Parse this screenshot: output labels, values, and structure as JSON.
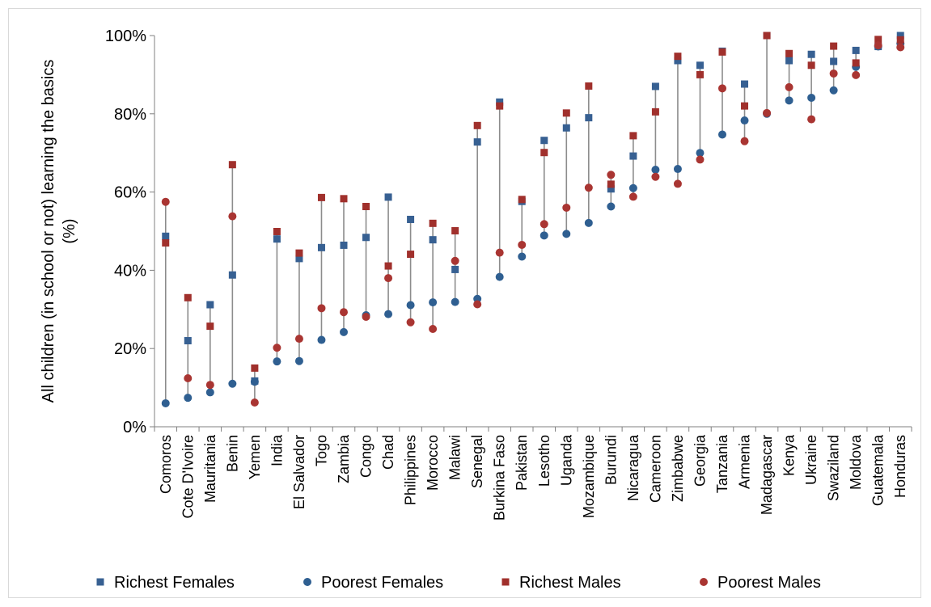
{
  "chart_data": {
    "type": "scatter",
    "title": "",
    "ylabel": "All children (in school or not) learning the basics (%)",
    "ylabel_lines": [
      "All children (in school or not) learning the basics",
      "(%)"
    ],
    "xlabel": "",
    "ylim": [
      0,
      100
    ],
    "yticks": [
      0,
      20,
      40,
      60,
      80,
      100
    ],
    "ytick_labels": [
      "0%",
      "20%",
      "40%",
      "60%",
      "80%",
      "100%"
    ],
    "grid": false,
    "legend_position": "bottom",
    "categories": [
      "Comoros",
      "Cote D'Ivoire",
      "Mauritania",
      "Benin",
      "Yemen",
      "India",
      "El Salvador",
      "Togo",
      "Zambia",
      "Congo",
      "Chad",
      "Philippines",
      "Morocco",
      "Malawi",
      "Senegal",
      "Burkina Faso",
      "Pakistan",
      "Lesotho",
      "Uganda",
      "Mozambique",
      "Burundi",
      "Nicaragua",
      "Cameroon",
      "Zimbabwe",
      "Georgia",
      "Tanzania",
      "Armenia",
      "Madagascar",
      "Kenya",
      "Ukraine",
      "Swaziland",
      "Moldova",
      "Guatemala",
      "Honduras"
    ],
    "series": [
      {
        "name": "Richest Females",
        "marker": "square",
        "color": "#376092",
        "values": [
          48.7,
          22.0,
          31.2,
          38.8,
          11.7,
          48.0,
          43.0,
          45.8,
          46.4,
          48.4,
          58.7,
          53.0,
          47.8,
          40.2,
          72.8,
          83.0,
          57.6,
          73.2,
          76.4,
          79.0,
          60.8,
          69.2,
          87.0,
          93.6,
          92.4,
          96.0,
          87.6,
          100.0,
          93.6,
          95.2,
          93.4,
          96.2,
          97.2,
          100.0
        ]
      },
      {
        "name": "Poorest Females",
        "marker": "circle",
        "color": "#2f5f91",
        "values": [
          6.0,
          7.4,
          8.8,
          11.0,
          11.5,
          16.7,
          16.8,
          22.2,
          24.2,
          28.5,
          28.8,
          31.1,
          31.8,
          31.9,
          32.7,
          38.3,
          43.5,
          48.9,
          49.3,
          52.1,
          56.3,
          61.0,
          65.7,
          65.9,
          70.0,
          74.7,
          78.3,
          80.0,
          83.4,
          84.1,
          86.0,
          92.0,
          97.2,
          98.0
        ]
      },
      {
        "name": "Richest Males",
        "marker": "square",
        "color": "#a0302c",
        "values": [
          47.0,
          33.0,
          25.7,
          67.0,
          15.0,
          49.9,
          44.4,
          58.6,
          58.3,
          56.3,
          41.1,
          44.1,
          52.0,
          50.1,
          77.0,
          82.0,
          58.1,
          70.1,
          80.2,
          87.1,
          62.0,
          74.4,
          80.5,
          94.7,
          90.0,
          95.8,
          82.0,
          100.0,
          95.4,
          92.4,
          97.3,
          93.0,
          99.0,
          98.9
        ]
      },
      {
        "name": "Poorest Males",
        "marker": "circle",
        "color": "#a93532",
        "values": [
          57.5,
          12.4,
          10.7,
          53.8,
          6.2,
          20.2,
          22.5,
          30.3,
          29.3,
          28.1,
          38.0,
          26.7,
          25.0,
          42.4,
          31.3,
          44.5,
          46.5,
          51.8,
          56.0,
          61.1,
          64.4,
          58.8,
          63.9,
          62.1,
          68.3,
          86.5,
          73.0,
          80.2,
          86.8,
          78.6,
          90.3,
          89.9,
          97.5,
          97.0
        ]
      }
    ],
    "range_line_color": "#8c8c8c"
  }
}
